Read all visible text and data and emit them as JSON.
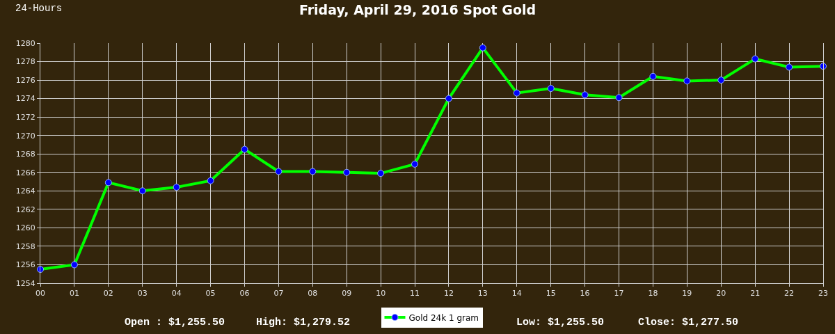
{
  "chart_data": {
    "type": "line",
    "title": "Friday, April 29, 2016 Spot Gold",
    "subtitle": "24-Hours",
    "categories": [
      "00",
      "01",
      "02",
      "03",
      "04",
      "05",
      "06",
      "07",
      "08",
      "09",
      "10",
      "11",
      "12",
      "13",
      "14",
      "15",
      "16",
      "17",
      "18",
      "19",
      "20",
      "21",
      "22",
      "23"
    ],
    "series": [
      {
        "name": "Gold 24k 1 gram",
        "color": "#00ff00",
        "values": [
          1255.5,
          1256.0,
          1264.9,
          1264.0,
          1264.4,
          1265.1,
          1268.5,
          1266.1,
          1266.1,
          1266.0,
          1265.9,
          1266.9,
          1274.0,
          1279.5,
          1274.6,
          1275.1,
          1274.4,
          1274.1,
          1276.4,
          1275.9,
          1276.0,
          1278.3,
          1277.4,
          1277.5
        ]
      }
    ],
    "ylim": [
      1254,
      1280
    ],
    "yticks": [
      1254,
      1256,
      1258,
      1260,
      1262,
      1264,
      1266,
      1268,
      1270,
      1272,
      1274,
      1276,
      1278,
      1280
    ],
    "annotations": [
      "Open : $1,255.50",
      "High: $1,279.52",
      "Low: $1,255.50",
      "Close: $1,277.50"
    ],
    "grid": true,
    "legend": "bottom",
    "marker": "circle",
    "line_style": "solid"
  }
}
